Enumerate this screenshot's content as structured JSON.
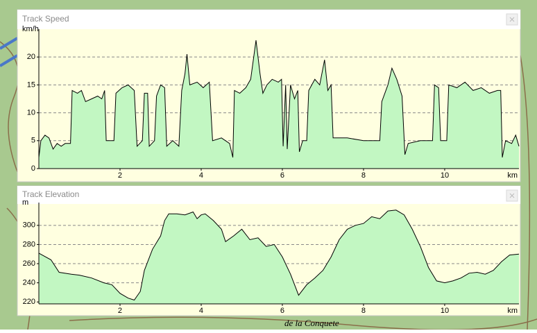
{
  "chart_data": [
    {
      "type": "area",
      "title": "Track Speed",
      "y_label": "km/h",
      "x_label": "km",
      "color": "#c2f7c2",
      "line_color": "#000000",
      "grid": true,
      "xlim": [
        0,
        11.83
      ],
      "xticks": [
        2,
        4,
        6,
        8,
        10
      ],
      "ylim": [
        0,
        24
      ],
      "yticks": [
        0,
        5,
        10,
        15,
        20
      ],
      "x": [
        0,
        0.05,
        0.15,
        0.25,
        0.35,
        0.45,
        0.55,
        0.65,
        0.78,
        0.82,
        0.95,
        1.05,
        1.15,
        1.3,
        1.45,
        1.55,
        1.62,
        1.66,
        1.85,
        1.9,
        2.05,
        2.2,
        2.35,
        2.42,
        2.55,
        2.6,
        2.68,
        2.72,
        2.85,
        2.9,
        3.0,
        3.1,
        3.15,
        3.3,
        3.45,
        3.52,
        3.6,
        3.65,
        3.72,
        3.9,
        4.05,
        4.2,
        4.28,
        4.5,
        4.7,
        4.78,
        4.82,
        4.95,
        5.1,
        5.22,
        5.35,
        5.45,
        5.52,
        5.62,
        5.75,
        5.9,
        5.98,
        6.02,
        6.08,
        6.12,
        6.2,
        6.3,
        6.38,
        6.42,
        6.5,
        6.6,
        6.65,
        6.8,
        6.92,
        7.04,
        7.12,
        7.2,
        7.25,
        7.6,
        8.0,
        8.4,
        8.45,
        8.6,
        8.7,
        8.82,
        8.95,
        9.02,
        9.1,
        9.4,
        9.7,
        9.75,
        9.85,
        9.9,
        10.05,
        10.1,
        10.3,
        10.5,
        10.7,
        10.9,
        11.1,
        11.3,
        11.38,
        11.42,
        11.5,
        11.65,
        11.75,
        11.83
      ],
      "values": [
        2,
        5,
        6,
        5.5,
        3.5,
        4.5,
        4,
        4.5,
        4.5,
        14,
        13.5,
        14,
        12,
        12.5,
        13,
        12.5,
        14,
        5,
        5,
        13.5,
        14.5,
        15,
        14,
        4,
        5,
        13.5,
        13.5,
        4,
        5,
        13,
        15,
        14.5,
        4,
        5,
        4,
        14,
        17,
        20.5,
        15,
        15.5,
        14.5,
        15.5,
        5,
        5.5,
        4.5,
        2,
        14,
        13.5,
        14.5,
        16,
        23,
        17,
        13.5,
        15,
        16,
        15.5,
        16,
        4,
        15,
        3.5,
        15,
        12.5,
        14,
        3,
        5,
        5,
        14,
        16,
        15,
        19.5,
        14,
        15,
        5.5,
        5.5,
        5,
        5,
        12,
        15,
        18,
        16,
        13,
        2.5,
        4.5,
        5,
        5,
        15,
        14.5,
        5,
        5,
        15,
        14.5,
        15.5,
        14,
        14.5,
        13.5,
        14,
        14,
        2,
        5,
        4.5,
        6,
        4
      ]
    },
    {
      "type": "area",
      "title": "Track Elevation",
      "y_label": "m",
      "x_label": "km",
      "color": "#c2f7c2",
      "line_color": "#000000",
      "grid": true,
      "xlim": [
        0,
        11.83
      ],
      "xticks": [
        2,
        4,
        6,
        8,
        10
      ],
      "ylim": [
        218,
        318
      ],
      "yticks": [
        220,
        240,
        260,
        280,
        300
      ],
      "x": [
        0,
        0.3,
        0.5,
        0.8,
        1.0,
        1.3,
        1.6,
        1.8,
        2.0,
        2.2,
        2.35,
        2.5,
        2.6,
        2.8,
        3.0,
        3.1,
        3.2,
        3.4,
        3.6,
        3.8,
        3.9,
        4.0,
        4.1,
        4.3,
        4.5,
        4.6,
        4.8,
        5.0,
        5.2,
        5.4,
        5.6,
        5.8,
        6.0,
        6.2,
        6.4,
        6.6,
        6.8,
        7.0,
        7.2,
        7.4,
        7.6,
        7.8,
        8.0,
        8.2,
        8.4,
        8.6,
        8.8,
        9.0,
        9.2,
        9.4,
        9.6,
        9.8,
        10.0,
        10.2,
        10.4,
        10.6,
        10.8,
        11.0,
        11.2,
        11.4,
        11.6,
        11.83
      ],
      "values": [
        271,
        264,
        251,
        249,
        248,
        245,
        240,
        238,
        229,
        224,
        222,
        231,
        253,
        275,
        289,
        305,
        312,
        312,
        311,
        314,
        307,
        311,
        312,
        305,
        296,
        283,
        289,
        296,
        285,
        287,
        278,
        280,
        267,
        249,
        227,
        238,
        245,
        253,
        267,
        285,
        296,
        300,
        302,
        309,
        307,
        315,
        316,
        311,
        296,
        278,
        256,
        242,
        240,
        242,
        245,
        250,
        251,
        249,
        253,
        262,
        269,
        270
      ]
    }
  ],
  "map_labels": [
    "de la Conquete"
  ]
}
